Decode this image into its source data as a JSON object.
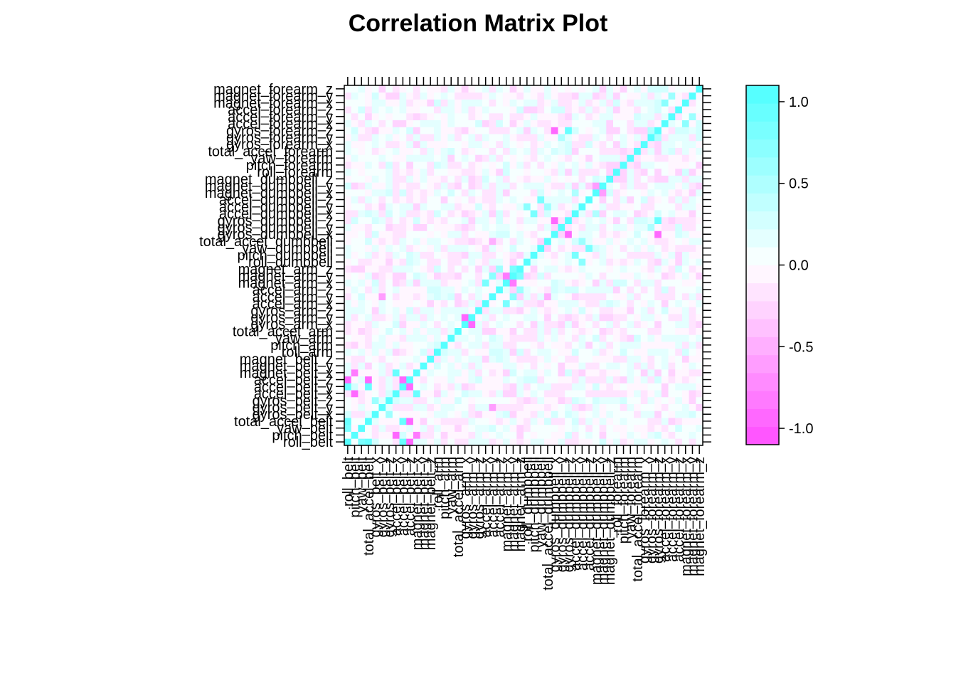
{
  "chart_data": {
    "type": "heatmap",
    "title": "Correlation Matrix Plot",
    "variables": [
      "roll_belt",
      "pitch_belt",
      "yaw_belt",
      "total_accel_belt",
      "gyros_belt_x",
      "gyros_belt_y",
      "gyros_belt_z",
      "accel_belt_x",
      "accel_belt_y",
      "accel_belt_z",
      "magnet_belt_x",
      "magnet_belt_y",
      "magnet_belt_z",
      "roll_arm",
      "pitch_arm",
      "yaw_arm",
      "total_accel_arm",
      "gyros_arm_x",
      "gyros_arm_y",
      "gyros_arm_z",
      "accel_arm_x",
      "accel_arm_y",
      "accel_arm_z",
      "magnet_arm_x",
      "magnet_arm_y",
      "magnet_arm_z",
      "roll_dumbbell",
      "pitch_dumbbell",
      "yaw_dumbbell",
      "total_accel_dumbbell",
      "gyros_dumbbell_x",
      "gyros_dumbbell_y",
      "gyros_dumbbell_z",
      "accel_dumbbell_x",
      "accel_dumbbell_y",
      "accel_dumbbell_z",
      "magnet_dumbbell_x",
      "magnet_dumbbell_y",
      "magnet_dumbbell_z",
      "roll_forearm",
      "pitch_forearm",
      "yaw_forearm",
      "total_accel_forearm",
      "gyros_forearm_x",
      "gyros_forearm_y",
      "gyros_forearm_z",
      "accel_forearm_x",
      "accel_forearm_y",
      "accel_forearm_z",
      "magnet_forearm_x",
      "magnet_forearm_y",
      "magnet_forearm_z"
    ],
    "notable_correlations": [
      {
        "a": "roll_belt",
        "b": "total_accel_belt",
        "r": 0.98
      },
      {
        "a": "roll_belt",
        "b": "accel_belt_y",
        "r": 0.92
      },
      {
        "a": "roll_belt",
        "b": "accel_belt_z",
        "r": -0.99
      },
      {
        "a": "roll_belt",
        "b": "yaw_belt",
        "r": 0.82
      },
      {
        "a": "pitch_belt",
        "b": "accel_belt_x",
        "r": -0.97
      },
      {
        "a": "pitch_belt",
        "b": "magnet_belt_x",
        "r": -0.88
      },
      {
        "a": "total_accel_belt",
        "b": "accel_belt_y",
        "r": 0.93
      },
      {
        "a": "total_accel_belt",
        "b": "accel_belt_z",
        "r": -0.97
      },
      {
        "a": "accel_belt_y",
        "b": "accel_belt_z",
        "r": -0.93
      },
      {
        "a": "accel_belt_x",
        "b": "magnet_belt_x",
        "r": 0.89
      },
      {
        "a": "gyros_belt_x",
        "b": "gyros_belt_z",
        "r": 0.6
      },
      {
        "a": "gyros_arm_x",
        "b": "gyros_arm_y",
        "r": -0.92
      },
      {
        "a": "accel_arm_x",
        "b": "magnet_arm_x",
        "r": 0.81
      },
      {
        "a": "magnet_arm_y",
        "b": "magnet_arm_z",
        "r": 0.81
      },
      {
        "a": "magnet_arm_x",
        "b": "magnet_arm_y",
        "r": -0.78
      },
      {
        "a": "accel_arm_y",
        "b": "magnet_arm_y",
        "r": 0.7
      },
      {
        "a": "accel_arm_z",
        "b": "magnet_arm_z",
        "r": 0.55
      },
      {
        "a": "roll_dumbbell",
        "b": "accel_dumbbell_y",
        "r": 0.7
      },
      {
        "a": "pitch_dumbbell",
        "b": "accel_dumbbell_x",
        "r": 0.81
      },
      {
        "a": "yaw_dumbbell",
        "b": "accel_dumbbell_z",
        "r": 0.85
      },
      {
        "a": "total_accel_dumbbell",
        "b": "accel_dumbbell_y",
        "r": 0.6
      },
      {
        "a": "gyros_dumbbell_x",
        "b": "gyros_dumbbell_z",
        "r": -0.98
      },
      {
        "a": "gyros_dumbbell_z",
        "b": "gyros_forearm_z",
        "r": 0.93
      },
      {
        "a": "gyros_dumbbell_x",
        "b": "gyros_forearm_z",
        "r": -0.91
      },
      {
        "a": "gyros_dumbbell_y",
        "b": "gyros_forearm_y",
        "r": 0.5
      },
      {
        "a": "accel_dumbbell_x",
        "b": "magnet_dumbbell_x",
        "r": 0.5
      },
      {
        "a": "magnet_dumbbell_x",
        "b": "magnet_dumbbell_y",
        "r": -0.6
      },
      {
        "a": "gyros_forearm_y",
        "b": "gyros_forearm_z",
        "r": 0.53
      },
      {
        "a": "accel_forearm_x",
        "b": "magnet_forearm_x",
        "r": 0.68
      },
      {
        "a": "magnet_forearm_y",
        "b": "accel_forearm_y",
        "r": 0.58
      },
      {
        "a": "total_accel_dumbbell",
        "b": "accel_arm_y",
        "r": -0.5
      },
      {
        "a": "gyros_belt_y",
        "b": "accel_arm_y",
        "r": -0.6
      }
    ],
    "diagonal": 1.0,
    "colorbar": {
      "ticks": [
        1.0,
        0.5,
        0.0,
        -0.5,
        -1.0
      ],
      "tick_labels": [
        "1.0",
        "0.5",
        "0.0",
        "-0.5",
        "-1.0"
      ],
      "range": [
        -1.1,
        1.1
      ],
      "low_color": "#ff4dff",
      "mid_color": "#ffffff",
      "high_color": "#4dffff",
      "levels": 20
    },
    "xlabel": "",
    "ylabel": "",
    "grid": false,
    "legend": "right"
  }
}
